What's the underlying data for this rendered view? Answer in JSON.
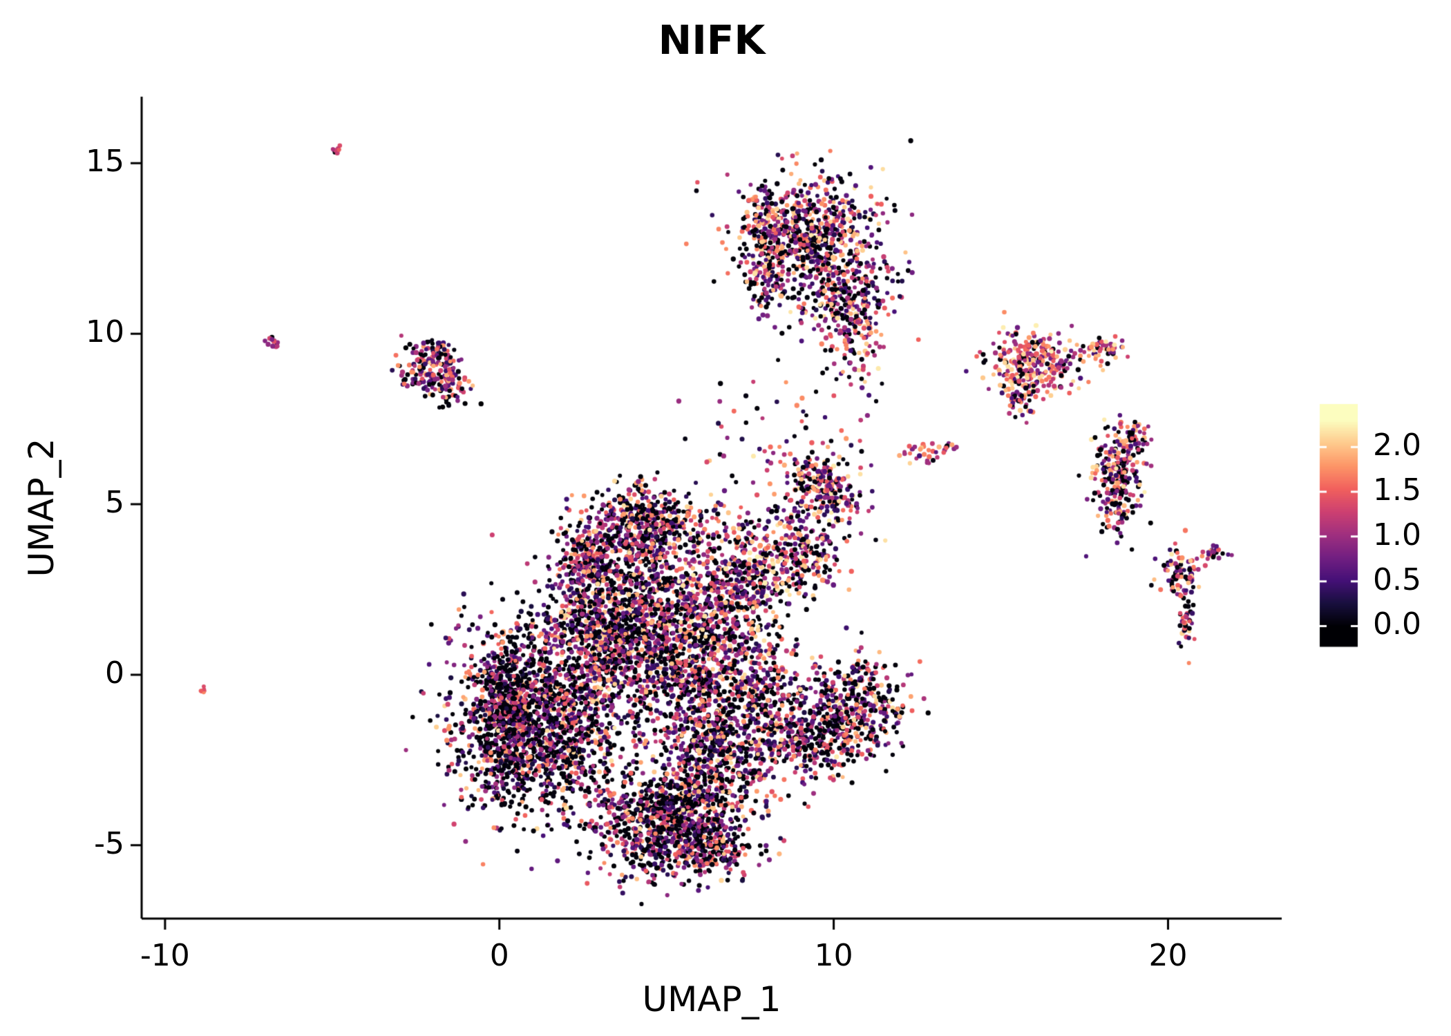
{
  "chart_data": {
    "type": "scatter",
    "title": "NIFK",
    "xlabel": "UMAP_1",
    "ylabel": "UMAP_2",
    "xlim": [
      -10.7,
      23.4
    ],
    "ylim": [
      -7.15,
      16.95
    ],
    "xticks": [
      -10,
      0,
      10,
      20
    ],
    "yticks": [
      -5,
      0,
      5,
      10,
      15
    ],
    "grid": false,
    "background": "#ffffff",
    "axis_color": "#000000",
    "legend": {
      "type": "colorbar",
      "position": "right",
      "ticks": [
        2.0,
        1.5,
        1.0,
        0.5,
        0.0
      ],
      "vmin": 0.0,
      "vmax": 2.3,
      "bar_value_range": [
        -0.22,
        2.48
      ]
    },
    "colormap": {
      "name": "magma",
      "stops": [
        "#000004",
        "#180f3e",
        "#451077",
        "#721f81",
        "#9f2f7f",
        "#cd4071",
        "#f1605d",
        "#fd9567",
        "#feca8d",
        "#fcfdbf"
      ]
    },
    "point_style": {
      "radius_px": 3.2,
      "opacity": 1.0
    },
    "cluster_fields": [
      "cx",
      "cy",
      "sx",
      "sy",
      "n",
      "dark_frac",
      "v_base",
      "v_spread",
      "v_shape"
    ],
    "clusters": [
      [
        1.2,
        -1.3,
        1.3,
        1.4,
        1500,
        0.42,
        0.25,
        1.9,
        1.35
      ],
      [
        0.2,
        -1.2,
        0.5,
        1.2,
        400,
        0.5,
        0.2,
        1.7,
        1.4
      ],
      [
        5.0,
        -4.3,
        1.2,
        0.8,
        900,
        0.42,
        0.25,
        1.9,
        1.35
      ],
      [
        6.4,
        -2.3,
        0.9,
        0.9,
        500,
        0.45,
        0.25,
        1.9,
        1.35
      ],
      [
        5.6,
        0.4,
        1.2,
        1.2,
        1000,
        0.35,
        0.3,
        1.9,
        1.25
      ],
      [
        4.0,
        2.2,
        1.1,
        0.9,
        600,
        0.35,
        0.3,
        1.9,
        1.25
      ],
      [
        4.6,
        4.4,
        1.0,
        0.6,
        500,
        0.32,
        0.3,
        1.9,
        1.2
      ],
      [
        2.6,
        3.3,
        0.5,
        0.6,
        200,
        0.35,
        0.3,
        1.8,
        1.3
      ],
      [
        2.9,
        0.9,
        0.9,
        0.9,
        450,
        0.4,
        0.25,
        1.9,
        1.35
      ],
      [
        7.0,
        2.6,
        0.7,
        0.9,
        350,
        0.3,
        0.35,
        1.9,
        1.15
      ],
      [
        8.7,
        3.4,
        0.8,
        0.7,
        320,
        0.32,
        0.35,
        1.9,
        1.15
      ],
      [
        9.6,
        5.5,
        0.6,
        0.6,
        250,
        0.3,
        0.35,
        1.9,
        1.2
      ],
      [
        10.6,
        -0.9,
        0.8,
        0.8,
        400,
        0.38,
        0.3,
        1.9,
        1.3
      ],
      [
        9.3,
        -1.9,
        0.7,
        0.6,
        260,
        0.4,
        0.28,
        1.9,
        1.3
      ],
      [
        7.9,
        -0.5,
        0.5,
        0.9,
        220,
        0.38,
        0.3,
        1.8,
        1.3
      ],
      [
        6.3,
        -5.1,
        0.6,
        0.4,
        160,
        0.4,
        0.25,
        1.8,
        1.35
      ],
      [
        9.2,
        13.0,
        1.1,
        0.85,
        620,
        0.3,
        0.3,
        1.9,
        1.2
      ],
      [
        10.2,
        11.4,
        0.8,
        0.8,
        260,
        0.32,
        0.3,
        1.9,
        1.25
      ],
      [
        10.5,
        9.9,
        0.45,
        0.85,
        130,
        0.3,
        0.3,
        1.9,
        1.25
      ],
      [
        8.0,
        11.5,
        0.3,
        0.6,
        60,
        0.3,
        0.3,
        1.8,
        1.25
      ],
      [
        7.9,
        12.8,
        0.3,
        0.8,
        80,
        0.28,
        0.3,
        1.9,
        1.2
      ],
      [
        -2.3,
        8.9,
        0.45,
        0.35,
        90,
        0.3,
        0.3,
        1.8,
        1.2
      ],
      [
        -1.55,
        8.5,
        0.35,
        0.3,
        80,
        0.3,
        0.3,
        1.8,
        1.2
      ],
      [
        -1.8,
        9.35,
        0.3,
        0.25,
        60,
        0.28,
        0.3,
        1.8,
        1.1
      ],
      [
        8.3,
        7.0,
        1.3,
        1.0,
        55,
        0.3,
        0.3,
        1.8,
        1.3
      ],
      [
        12.6,
        6.5,
        0.4,
        0.15,
        28,
        0.12,
        0.5,
        1.6,
        0.95
      ],
      [
        13.5,
        6.6,
        0.15,
        0.1,
        8,
        0.1,
        0.6,
        1.5,
        0.9
      ],
      [
        16.0,
        9.2,
        0.65,
        0.5,
        270,
        0.15,
        0.45,
        1.8,
        0.95
      ],
      [
        15.6,
        8.25,
        0.3,
        0.3,
        60,
        0.2,
        0.4,
        1.8,
        1.0
      ],
      [
        18.0,
        9.45,
        0.4,
        0.2,
        55,
        0.18,
        0.45,
        1.8,
        0.95
      ],
      [
        18.5,
        5.7,
        0.35,
        0.8,
        240,
        0.32,
        0.35,
        1.9,
        1.1
      ],
      [
        19.05,
        6.9,
        0.2,
        0.3,
        40,
        0.3,
        0.35,
        1.8,
        1.1
      ],
      [
        20.35,
        2.95,
        0.3,
        0.35,
        85,
        0.28,
        0.35,
        1.9,
        1.1
      ],
      [
        20.55,
        1.55,
        0.12,
        0.45,
        40,
        0.3,
        0.35,
        1.8,
        1.1
      ],
      [
        21.4,
        3.6,
        0.28,
        0.12,
        25,
        0.2,
        0.5,
        1.7,
        1.0
      ],
      [
        -6.8,
        9.7,
        0.12,
        0.1,
        12,
        0.1,
        0.8,
        1.0,
        1.0
      ],
      [
        -4.85,
        15.4,
        0.1,
        0.08,
        10,
        0.1,
        0.7,
        1.2,
        1.0
      ],
      [
        -8.8,
        -0.45,
        0.07,
        0.06,
        6,
        0.05,
        0.9,
        0.8,
        1.0
      ]
    ]
  }
}
